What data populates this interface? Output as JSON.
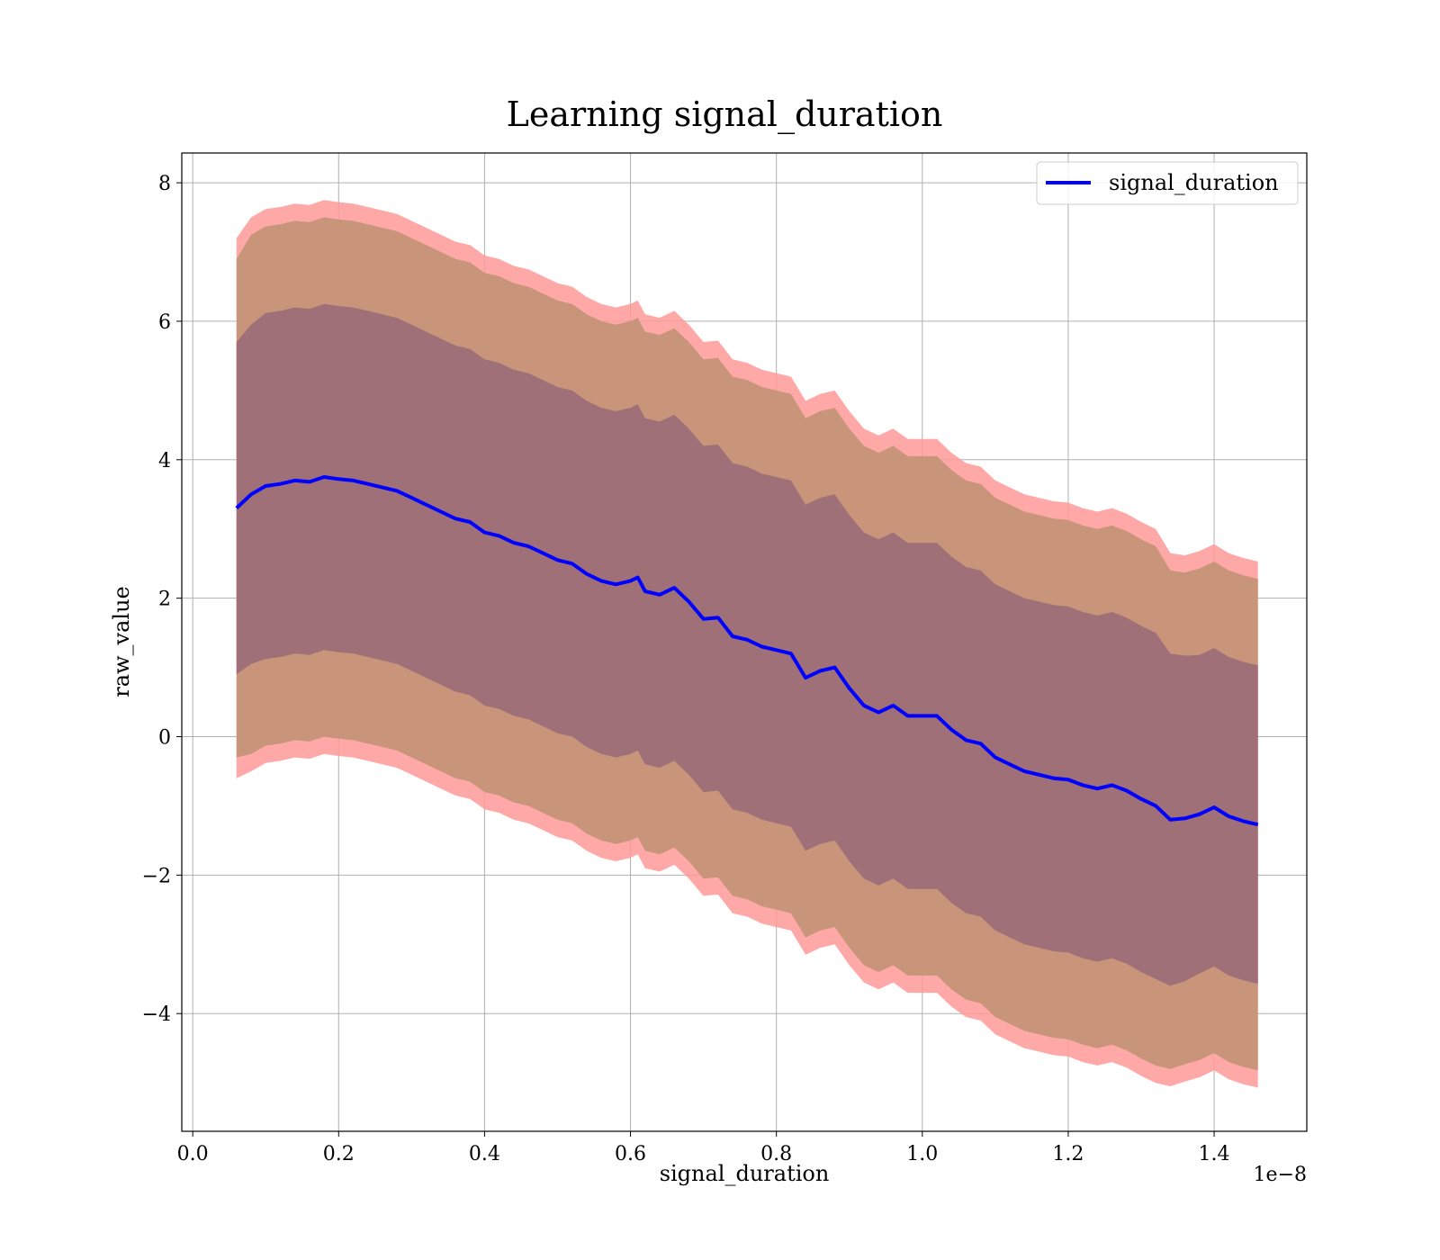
{
  "chart_data": {
    "type": "line",
    "title": "Learning signal_duration",
    "xlabel": "signal_duration",
    "ylabel": "raw_value",
    "x_offset_label": "1e−8",
    "xlim": [
      -0.015,
      1.527
    ],
    "ylim": [
      -5.7,
      8.43
    ],
    "x_ticks": [
      0.0,
      0.2,
      0.4,
      0.6,
      0.8,
      1.0,
      1.2,
      1.4
    ],
    "x_tick_labels": [
      "0.0",
      "0.2",
      "0.4",
      "0.6",
      "0.8",
      "1.0",
      "1.2",
      "1.4"
    ],
    "y_ticks": [
      -4,
      -2,
      0,
      2,
      4,
      6,
      8
    ],
    "y_tick_labels": [
      "−4",
      "−2",
      "0",
      "2",
      "4",
      "6",
      "8"
    ],
    "grid": true,
    "legend": {
      "position": "top-right",
      "entries": [
        "signal_duration"
      ]
    },
    "colors": {
      "mean_line": "#0000ff",
      "band_outer_max": "#ff9999",
      "band_outer_std2": "#c8957a",
      "band_inner_std1": "#a07078",
      "grid": "#b0b0b0"
    },
    "series": [
      {
        "name": "signal_duration",
        "x": [
          0.06,
          0.08,
          0.1,
          0.12,
          0.14,
          0.16,
          0.18,
          0.2,
          0.22,
          0.24,
          0.26,
          0.28,
          0.3,
          0.32,
          0.34,
          0.36,
          0.38,
          0.4,
          0.42,
          0.44,
          0.46,
          0.48,
          0.5,
          0.52,
          0.54,
          0.56,
          0.58,
          0.6,
          0.61,
          0.62,
          0.64,
          0.66,
          0.68,
          0.7,
          0.72,
          0.74,
          0.76,
          0.78,
          0.8,
          0.82,
          0.84,
          0.86,
          0.88,
          0.9,
          0.92,
          0.94,
          0.96,
          0.98,
          1.0,
          1.02,
          1.04,
          1.06,
          1.08,
          1.1,
          1.12,
          1.14,
          1.16,
          1.18,
          1.2,
          1.22,
          1.24,
          1.26,
          1.28,
          1.3,
          1.32,
          1.34,
          1.36,
          1.38,
          1.4,
          1.42,
          1.44,
          1.46
        ],
        "values": [
          3.3,
          3.5,
          3.62,
          3.65,
          3.7,
          3.68,
          3.75,
          3.72,
          3.7,
          3.65,
          3.6,
          3.55,
          3.45,
          3.35,
          3.25,
          3.15,
          3.1,
          2.95,
          2.9,
          2.8,
          2.75,
          2.65,
          2.55,
          2.5,
          2.35,
          2.25,
          2.2,
          2.25,
          2.3,
          2.1,
          2.05,
          2.15,
          1.95,
          1.7,
          1.72,
          1.45,
          1.4,
          1.3,
          1.25,
          1.2,
          0.85,
          0.95,
          1.0,
          0.7,
          0.45,
          0.35,
          0.45,
          0.3,
          0.3,
          0.3,
          0.1,
          -0.05,
          -0.1,
          -0.3,
          -0.4,
          -0.5,
          -0.55,
          -0.6,
          -0.62,
          -0.7,
          -0.75,
          -0.7,
          -0.78,
          -0.9,
          -1.0,
          -1.2,
          -1.18,
          -1.12,
          -1.02,
          -1.15,
          -1.22,
          -1.27
        ],
        "std1_half_width": [
          2.4,
          2.45,
          2.5,
          2.5,
          2.5,
          2.5,
          2.5,
          2.5,
          2.5,
          2.5,
          2.5,
          2.5,
          2.5,
          2.5,
          2.5,
          2.5,
          2.5,
          2.5,
          2.5,
          2.5,
          2.5,
          2.5,
          2.5,
          2.5,
          2.5,
          2.5,
          2.5,
          2.5,
          2.5,
          2.5,
          2.5,
          2.5,
          2.5,
          2.5,
          2.5,
          2.5,
          2.5,
          2.5,
          2.5,
          2.5,
          2.5,
          2.5,
          2.5,
          2.5,
          2.5,
          2.5,
          2.5,
          2.5,
          2.5,
          2.5,
          2.5,
          2.5,
          2.5,
          2.5,
          2.5,
          2.5,
          2.5,
          2.5,
          2.5,
          2.5,
          2.5,
          2.5,
          2.5,
          2.5,
          2.5,
          2.4,
          2.35,
          2.3,
          2.3,
          2.3,
          2.3,
          2.3
        ],
        "std2_half_width": [
          3.6,
          3.75,
          3.75,
          3.75,
          3.75,
          3.75,
          3.75,
          3.75,
          3.75,
          3.75,
          3.75,
          3.75,
          3.75,
          3.75,
          3.75,
          3.75,
          3.75,
          3.75,
          3.75,
          3.75,
          3.75,
          3.75,
          3.75,
          3.75,
          3.75,
          3.75,
          3.75,
          3.75,
          3.75,
          3.75,
          3.75,
          3.75,
          3.75,
          3.75,
          3.75,
          3.75,
          3.75,
          3.75,
          3.75,
          3.75,
          3.75,
          3.75,
          3.75,
          3.75,
          3.75,
          3.75,
          3.75,
          3.75,
          3.75,
          3.75,
          3.75,
          3.75,
          3.75,
          3.75,
          3.75,
          3.75,
          3.75,
          3.75,
          3.75,
          3.75,
          3.75,
          3.75,
          3.75,
          3.75,
          3.75,
          3.6,
          3.55,
          3.55,
          3.55,
          3.55,
          3.55,
          3.55
        ],
        "max_half_width": [
          3.9,
          4.0,
          4.0,
          4.0,
          4.0,
          4.0,
          4.0,
          4.0,
          4.0,
          4.0,
          4.0,
          4.0,
          4.0,
          4.0,
          4.0,
          4.0,
          4.0,
          4.0,
          4.0,
          4.0,
          4.0,
          4.0,
          4.0,
          4.0,
          4.0,
          4.0,
          4.0,
          4.0,
          4.0,
          4.0,
          4.0,
          4.0,
          4.0,
          4.0,
          4.0,
          4.0,
          4.0,
          4.0,
          4.0,
          4.0,
          4.0,
          4.0,
          4.0,
          4.0,
          4.0,
          4.0,
          4.0,
          4.0,
          4.0,
          4.0,
          4.0,
          4.0,
          4.0,
          4.0,
          4.0,
          4.0,
          4.0,
          4.0,
          4.0,
          4.0,
          4.0,
          4.0,
          4.0,
          4.0,
          4.0,
          3.85,
          3.8,
          3.8,
          3.8,
          3.8,
          3.8,
          3.8
        ]
      }
    ]
  }
}
